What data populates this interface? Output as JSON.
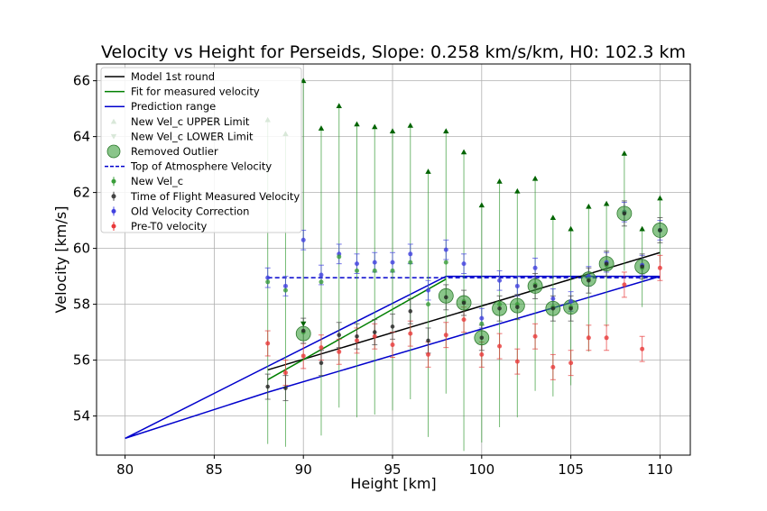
{
  "chart_data": {
    "type": "scatter",
    "title": "Velocity vs Height for Perseids, Slope: 0.258 km/s/km, H0: 102.3 km",
    "xlabel": "Height [km]",
    "ylabel": "Velocity [km/s]",
    "xlim": [
      78.4,
      111.7
    ],
    "ylim": [
      52.6,
      66.6
    ],
    "xticks": [
      80,
      85,
      90,
      95,
      100,
      105,
      110
    ],
    "yticks": [
      54,
      56,
      58,
      60,
      62,
      64,
      66
    ],
    "grid": true,
    "legend_position": "top-left",
    "colors": {
      "model": "#000000",
      "fit": "#007f00",
      "prediction": "#0000cc",
      "upper_limit": "#006400",
      "new_vel": "#3a9e3a",
      "tof": "#444444",
      "old_vel": "#4040e0",
      "pre_t0": "#e8393a",
      "outlier": "#3c9e3c"
    },
    "legend": [
      {
        "key": "model",
        "label": "Model 1st round",
        "kind": "line"
      },
      {
        "key": "fit",
        "label": "Fit for measured velocity",
        "kind": "line"
      },
      {
        "key": "prediction",
        "label": "Prediction range",
        "kind": "line"
      },
      {
        "key": "upper",
        "label": "New Vel_c UPPER Limit",
        "kind": "tri-up"
      },
      {
        "key": "lower",
        "label": "New Vel_c LOWER Limit",
        "kind": "tri-down"
      },
      {
        "key": "outlier",
        "label": "Removed Outlier",
        "kind": "circle"
      },
      {
        "key": "toa",
        "label": "Top of Atmosphere Velocity",
        "kind": "dashed"
      },
      {
        "key": "newvel",
        "label": "New Vel_c",
        "kind": "errdot"
      },
      {
        "key": "tof",
        "label": "Time of Flight Measured Velocity",
        "kind": "errdot"
      },
      {
        "key": "oldvel",
        "label": "Old Velocity Correction",
        "kind": "errdot"
      },
      {
        "key": "pre",
        "label": "Pre-T0 velocity",
        "kind": "errdot"
      }
    ],
    "lines": {
      "model": [
        [
          88,
          55.65
        ],
        [
          110,
          59.85
        ]
      ],
      "fit": [
        [
          88,
          55.3
        ],
        [
          98,
          58.9
        ]
      ],
      "prediction_polygon": [
        [
          80,
          53.2
        ],
        [
          98,
          59.0
        ],
        [
          110,
          59.0
        ],
        [
          88,
          54.85
        ],
        [
          80,
          53.2
        ]
      ],
      "top_of_atmosphere": {
        "y": 58.95,
        "x": [
          88,
          110
        ]
      }
    },
    "series": {
      "upper_limit": [
        [
          88,
          64.6
        ],
        [
          89,
          64.1
        ],
        [
          90,
          66.0
        ],
        [
          91,
          64.3
        ],
        [
          92,
          65.1
        ],
        [
          93,
          64.45
        ],
        [
          94,
          64.35
        ],
        [
          95,
          64.2
        ],
        [
          96,
          64.4
        ],
        [
          97,
          62.75
        ],
        [
          98,
          64.2
        ],
        [
          99,
          63.45
        ],
        [
          100,
          61.55
        ],
        [
          101,
          62.4
        ],
        [
          102,
          62.05
        ],
        [
          103,
          62.5
        ],
        [
          104,
          61.1
        ],
        [
          105,
          60.7
        ],
        [
          106,
          61.5
        ],
        [
          107,
          61.6
        ],
        [
          108,
          63.4
        ],
        [
          109,
          60.7
        ],
        [
          110,
          61.8
        ]
      ],
      "lower_limit": [
        [
          90,
          57.3
        ]
      ],
      "new_vel": [
        [
          88,
          58.8
        ],
        [
          89,
          58.5
        ],
        [
          90,
          57.0
        ],
        [
          91,
          58.8
        ],
        [
          92,
          59.7
        ],
        [
          93,
          59.2
        ],
        [
          94,
          59.2
        ],
        [
          95,
          59.2
        ],
        [
          96,
          59.5
        ],
        [
          97,
          58.0
        ],
        [
          98,
          59.5
        ],
        [
          99,
          58.1
        ],
        [
          100,
          57.3
        ],
        [
          101,
          58.0
        ],
        [
          102,
          58.0
        ],
        [
          103,
          58.7
        ],
        [
          104,
          57.9
        ],
        [
          105,
          57.9
        ],
        [
          106,
          58.9
        ],
        [
          107,
          59.4
        ],
        [
          108,
          61.3
        ],
        [
          109,
          59.3
        ],
        [
          110,
          60.65
        ]
      ],
      "tof": [
        [
          88,
          55.05
        ],
        [
          89,
          55.0
        ],
        [
          90,
          57.05
        ],
        [
          91,
          55.9
        ],
        [
          92,
          56.9
        ],
        [
          93,
          56.85
        ],
        [
          94,
          57.0
        ],
        [
          95,
          57.2
        ],
        [
          96,
          57.75
        ],
        [
          97,
          56.7
        ],
        [
          98,
          58.25
        ],
        [
          99,
          58.05
        ],
        [
          100,
          56.8
        ],
        [
          101,
          57.85
        ],
        [
          102,
          57.9
        ],
        [
          103,
          58.65
        ],
        [
          104,
          57.85
        ],
        [
          105,
          57.85
        ],
        [
          106,
          58.85
        ],
        [
          107,
          59.45
        ],
        [
          108,
          61.25
        ],
        [
          109,
          59.35
        ],
        [
          110,
          60.65
        ]
      ],
      "old_vel": [
        [
          88,
          58.95
        ],
        [
          89,
          58.65
        ],
        [
          90,
          60.3
        ],
        [
          91,
          59.05
        ],
        [
          92,
          59.8
        ],
        [
          93,
          59.45
        ],
        [
          94,
          59.5
        ],
        [
          95,
          59.5
        ],
        [
          96,
          59.8
        ],
        [
          97,
          58.5
        ],
        [
          98,
          59.95
        ],
        [
          99,
          59.45
        ],
        [
          100,
          57.5
        ],
        [
          101,
          58.85
        ],
        [
          102,
          58.65
        ],
        [
          103,
          59.3
        ],
        [
          104,
          58.2
        ],
        [
          105,
          58.1
        ],
        [
          106,
          59.0
        ],
        [
          107,
          59.5
        ],
        [
          108,
          61.3
        ],
        [
          109,
          59.4
        ],
        [
          110,
          60.65
        ]
      ],
      "pre_t0": [
        [
          88,
          56.6
        ],
        [
          89,
          55.55
        ],
        [
          90,
          56.15
        ],
        [
          91,
          56.45
        ],
        [
          92,
          56.3
        ],
        [
          93,
          56.7
        ],
        [
          94,
          56.85
        ],
        [
          95,
          56.55
        ],
        [
          96,
          56.95
        ],
        [
          97,
          56.2
        ],
        [
          98,
          56.9
        ],
        [
          99,
          57.45
        ],
        [
          100,
          56.2
        ],
        [
          101,
          56.5
        ],
        [
          102,
          55.95
        ],
        [
          103,
          56.85
        ],
        [
          104,
          55.75
        ],
        [
          105,
          55.9
        ],
        [
          106,
          56.8
        ],
        [
          107,
          56.8
        ],
        [
          108,
          58.7
        ],
        [
          109,
          56.4
        ],
        [
          110,
          59.3
        ]
      ],
      "removed_outlier": [
        [
          90,
          56.95
        ],
        [
          98,
          58.3
        ],
        [
          99,
          58.05
        ],
        [
          100,
          56.8
        ],
        [
          101,
          57.85
        ],
        [
          102,
          57.95
        ],
        [
          103,
          58.65
        ],
        [
          104,
          57.85
        ],
        [
          105,
          57.9
        ],
        [
          106,
          58.9
        ],
        [
          107,
          59.45
        ],
        [
          108,
          61.25
        ],
        [
          109,
          59.35
        ],
        [
          110,
          60.65
        ]
      ]
    }
  }
}
